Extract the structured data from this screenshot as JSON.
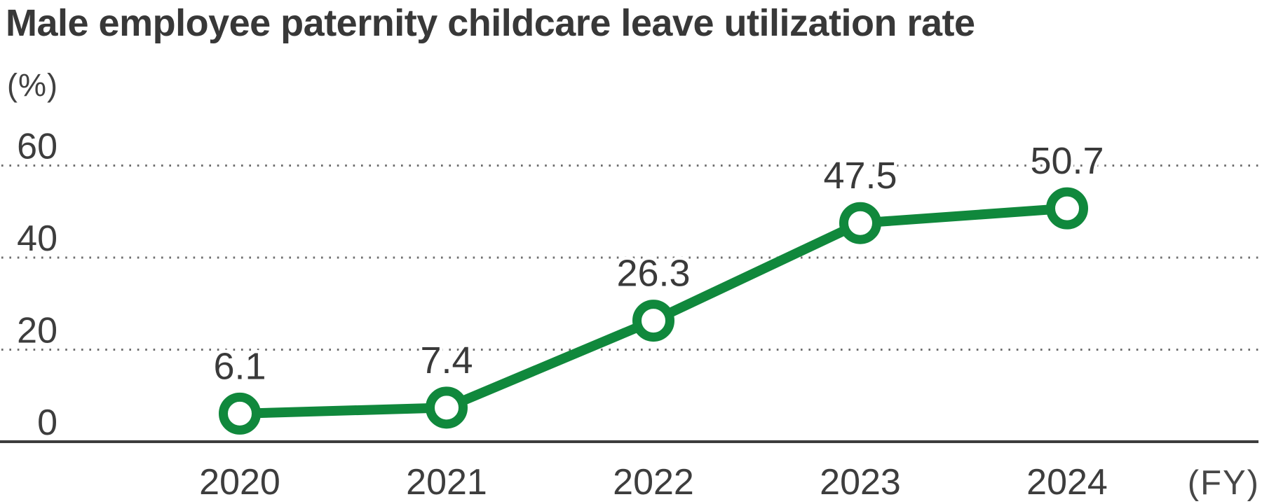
{
  "title": "Male employee paternity childcare leave utilization rate",
  "unit_label": "(%)",
  "chart_data": {
    "type": "line",
    "title": "Male employee paternity childcare leave utilization rate",
    "categories": [
      "2020",
      "2021",
      "2022",
      "2023",
      "2024"
    ],
    "values": [
      6.1,
      7.4,
      26.3,
      47.5,
      50.7
    ],
    "value_labels": [
      "6.1",
      "7.4",
      "26.3",
      "47.5",
      "50.7"
    ],
    "xlabel": "(FY)",
    "ylabel": "(%)",
    "ylim": [
      0,
      66
    ],
    "yticks": [
      0,
      20,
      40,
      60
    ],
    "grid": "horizontal-dotted",
    "legend": false,
    "marker": "open-circle",
    "colors": {
      "line": "#10883c",
      "marker_fill": "#ffffff",
      "grid": "#6f6f6f",
      "axis": "#3d3d3d",
      "tick_text": "#3d3d3d",
      "value_text": "#3a3a3a",
      "title_text": "#383838"
    }
  }
}
